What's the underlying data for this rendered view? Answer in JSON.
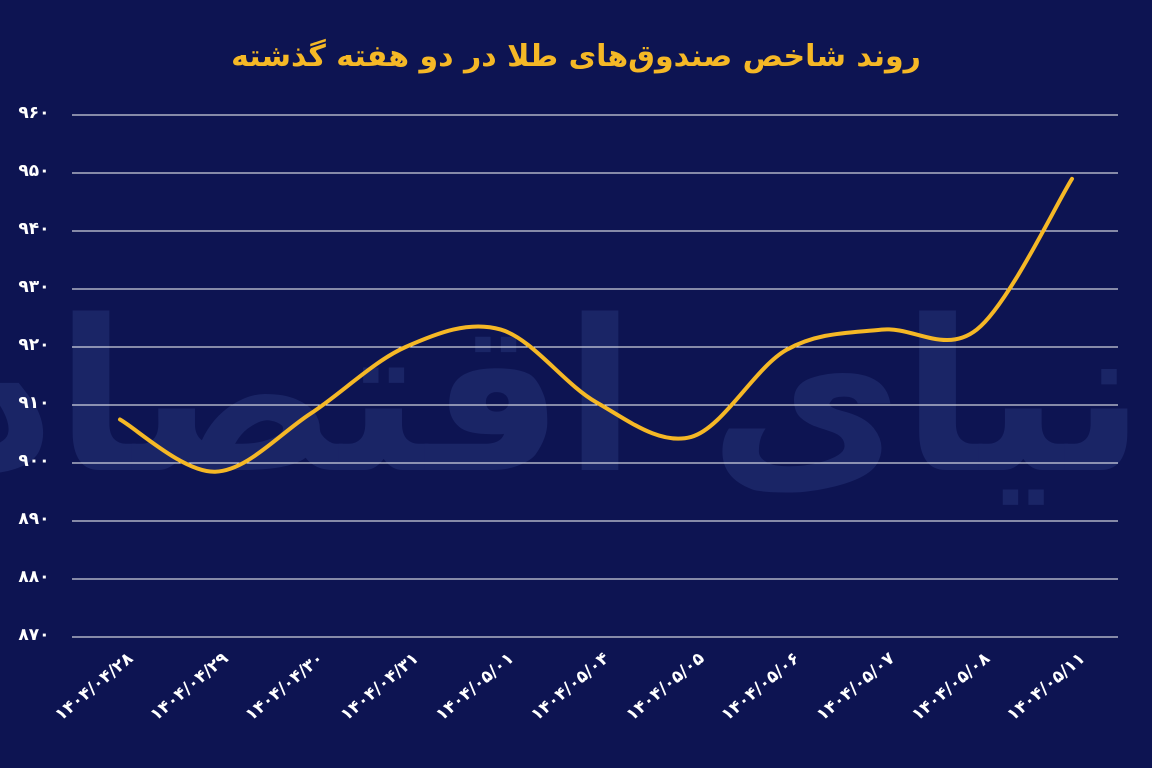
{
  "watermark": "دنیای اقتصاد",
  "colors": {
    "background": "#0d1452",
    "line": "#f5b826",
    "title": "#f5b826",
    "grid": "#ffffff",
    "text": "#ffffff",
    "watermark": "#1a2566"
  },
  "chart_data": {
    "type": "line",
    "title": "روند شاخص صندوق‌های طلا در دو هفته گذشته",
    "xlabel": "",
    "ylabel": "",
    "categories": [
      "۱۴۰۴/۰۴/۲۸",
      "۱۴۰۴/۰۴/۲۹",
      "۱۴۰۴/۰۴/۳۰",
      "۱۴۰۴/۰۴/۳۱",
      "۱۴۰۴/۰۵/۰۱",
      "۱۴۰۴/۰۵/۰۴",
      "۱۴۰۴/۰۵/۰۵",
      "۱۴۰۴/۰۵/۰۶",
      "۱۴۰۴/۰۵/۰۷",
      "۱۴۰۴/۰۵/۰۸",
      "۱۴۰۴/۰۵/۱۱"
    ],
    "values": [
      907.5,
      898.5,
      908.5,
      920,
      923,
      910.5,
      904.5,
      919.5,
      923,
      923,
      949
    ],
    "ylim": [
      870,
      960
    ],
    "yticks": [
      870,
      880,
      890,
      900,
      910,
      920,
      930,
      940,
      950,
      960
    ],
    "ytick_labels": [
      "۸۷۰",
      "۸۸۰",
      "۸۹۰",
      "۹۰۰",
      "۹۱۰",
      "۹۲۰",
      "۹۳۰",
      "۹۴۰",
      "۹۵۰",
      "۹۶۰"
    ],
    "grid": true,
    "legend": "none",
    "smooth": true
  }
}
